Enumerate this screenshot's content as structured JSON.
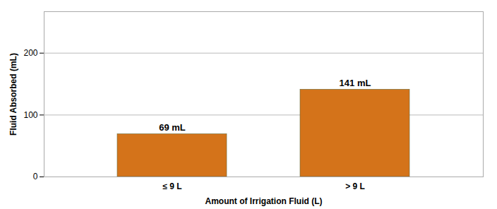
{
  "chart_data": {
    "type": "bar",
    "categories": [
      "≤ 9 L",
      "> 9 L"
    ],
    "values": [
      69,
      141
    ],
    "value_labels": [
      "69 mL",
      "141 mL"
    ],
    "data_labels": true,
    "xlabel": "Amount of Irrigation Fluid (L)",
    "ylabel": "Fluid Absorbed (mL)",
    "color": "#D4731A",
    "ylim": [
      0,
      267
    ],
    "yticks": [
      0,
      100,
      200
    ],
    "grid": true
  }
}
